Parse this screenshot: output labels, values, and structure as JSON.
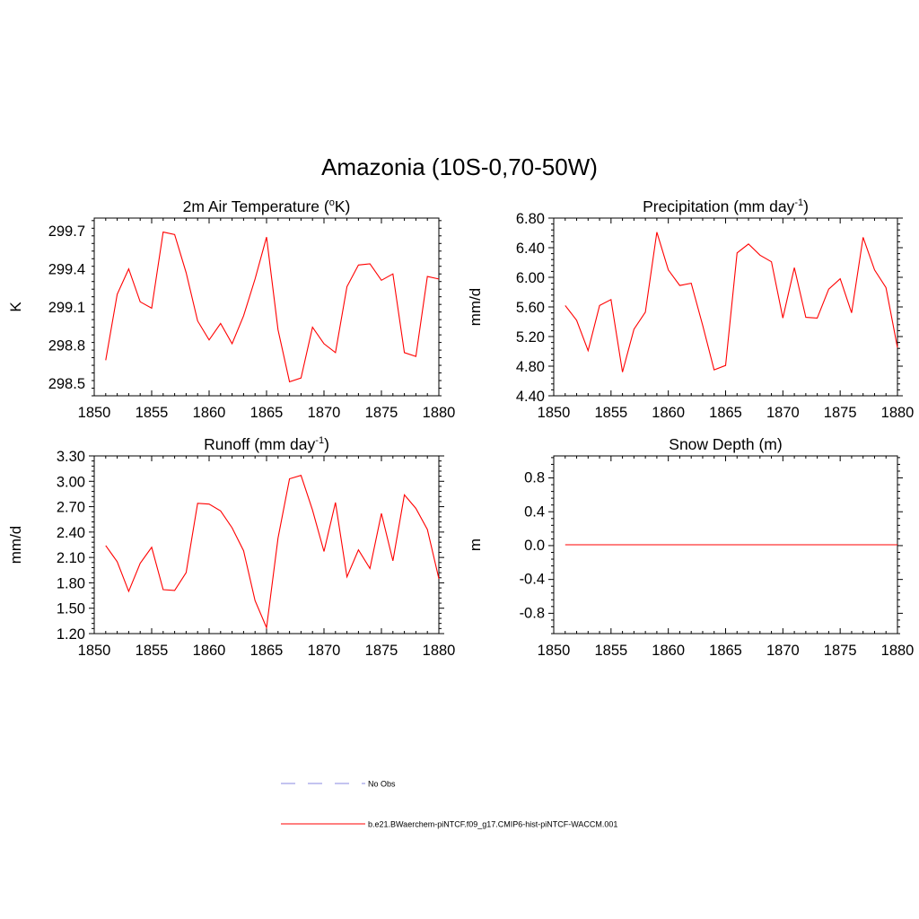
{
  "figure": {
    "title": "Amazonia (10S-0,70-50W)"
  },
  "colors": {
    "model_line": "#ff0000",
    "obs_line": "#a0a0e8",
    "axis": "#000000"
  },
  "chart_data": [
    {
      "type": "line",
      "panel": "top-left",
      "title": "2m Air Temperature (",
      "title_sup": "o",
      "title_end": "K)",
      "ylabel": "K",
      "xlim": [
        1850,
        1880
      ],
      "ylim": [
        298.4,
        299.8
      ],
      "xticks": [
        "1850",
        "1855",
        "1860",
        "1865",
        "1870",
        "1875",
        "1880"
      ],
      "yticks": [
        "298.5",
        "298.8",
        "299.1",
        "299.4",
        "299.7"
      ],
      "ytick_values": [
        298.5,
        298.8,
        299.1,
        299.4,
        299.7
      ],
      "x": [
        1851,
        1852,
        1853,
        1854,
        1855,
        1856,
        1857,
        1858,
        1859,
        1860,
        1861,
        1862,
        1863,
        1864,
        1865,
        1866,
        1867,
        1868,
        1869,
        1870,
        1871,
        1872,
        1873,
        1874,
        1875,
        1876,
        1877,
        1878,
        1879,
        1880
      ],
      "series": [
        {
          "values": [
            298.68,
            299.2,
            299.4,
            299.14,
            299.09,
            299.69,
            299.67,
            299.37,
            298.99,
            298.84,
            298.97,
            298.81,
            299.03,
            299.32,
            299.65,
            298.92,
            298.51,
            298.54,
            298.94,
            298.81,
            298.74,
            299.26,
            299.43,
            299.44,
            299.31,
            299.36,
            298.74,
            298.71,
            299.34,
            299.32
          ]
        }
      ]
    },
    {
      "type": "line",
      "panel": "top-right",
      "title": "Precipitation (mm day",
      "title_sup": "-1",
      "title_end": ")",
      "ylabel": "mm/d",
      "xlim": [
        1850,
        1880
      ],
      "ylim": [
        4.4,
        6.8
      ],
      "xticks": [
        "1850",
        "1855",
        "1860",
        "1865",
        "1870",
        "1875",
        "1880"
      ],
      "yticks": [
        "4.40",
        "4.80",
        "5.20",
        "5.60",
        "6.00",
        "6.40",
        "6.80"
      ],
      "ytick_values": [
        4.4,
        4.8,
        5.2,
        5.6,
        6.0,
        6.4,
        6.8
      ],
      "x": [
        1851,
        1852,
        1853,
        1854,
        1855,
        1856,
        1857,
        1858,
        1859,
        1860,
        1861,
        1862,
        1863,
        1864,
        1865,
        1866,
        1867,
        1868,
        1869,
        1870,
        1871,
        1872,
        1873,
        1874,
        1875,
        1876,
        1877,
        1878,
        1879,
        1880
      ],
      "series": [
        {
          "values": [
            5.62,
            5.42,
            5.01,
            5.62,
            5.7,
            4.72,
            5.3,
            5.53,
            6.61,
            6.1,
            5.89,
            5.92,
            5.35,
            4.75,
            4.81,
            6.33,
            6.45,
            6.3,
            6.21,
            5.45,
            6.13,
            5.46,
            5.45,
            5.84,
            5.98,
            5.52,
            6.54,
            6.1,
            5.86,
            5.05
          ]
        }
      ]
    },
    {
      "type": "line",
      "panel": "bottom-left",
      "title": "Runoff (mm day",
      "title_sup": "-1",
      "title_end": ")",
      "ylabel": "mm/d",
      "xlim": [
        1850,
        1880
      ],
      "ylim": [
        1.2,
        3.3
      ],
      "xticks": [
        "1850",
        "1855",
        "1860",
        "1865",
        "1870",
        "1875",
        "1880"
      ],
      "yticks": [
        "1.20",
        "1.50",
        "1.80",
        "2.10",
        "2.40",
        "2.70",
        "3.00",
        "3.30"
      ],
      "ytick_values": [
        1.2,
        1.5,
        1.8,
        2.1,
        2.4,
        2.7,
        3.0,
        3.3
      ],
      "x": [
        1851,
        1852,
        1853,
        1854,
        1855,
        1856,
        1857,
        1858,
        1859,
        1860,
        1861,
        1862,
        1863,
        1864,
        1865,
        1866,
        1867,
        1868,
        1869,
        1870,
        1871,
        1872,
        1873,
        1874,
        1875,
        1876,
        1877,
        1878,
        1879,
        1880
      ],
      "series": [
        {
          "values": [
            2.24,
            2.05,
            1.7,
            2.03,
            2.22,
            1.72,
            1.71,
            1.92,
            2.74,
            2.73,
            2.65,
            2.45,
            2.18,
            1.59,
            1.27,
            2.33,
            3.03,
            3.07,
            2.66,
            2.17,
            2.75,
            1.87,
            2.19,
            1.97,
            2.62,
            2.06,
            2.84,
            2.68,
            2.43,
            1.85
          ]
        }
      ]
    },
    {
      "type": "line",
      "panel": "bottom-right",
      "title": "Snow Depth (m)",
      "title_sup": "",
      "title_end": "",
      "ylabel": "m",
      "xlim": [
        1850,
        1880
      ],
      "ylim": [
        -1.05,
        1.05
      ],
      "xticks": [
        "1850",
        "1855",
        "1860",
        "1865",
        "1870",
        "1875",
        "1880"
      ],
      "yticks": [
        "-0.8",
        "-0.4",
        "0.0",
        "0.4",
        "0.8"
      ],
      "ytick_values": [
        -0.8,
        -0.4,
        0.0,
        0.4,
        0.8
      ],
      "x": [
        1851,
        1852,
        1853,
        1854,
        1855,
        1856,
        1857,
        1858,
        1859,
        1860,
        1861,
        1862,
        1863,
        1864,
        1865,
        1866,
        1867,
        1868,
        1869,
        1870,
        1871,
        1872,
        1873,
        1874,
        1875,
        1876,
        1877,
        1878,
        1879,
        1880
      ],
      "series": [
        {
          "values": [
            0,
            0,
            0,
            0,
            0,
            0,
            0,
            0,
            0,
            0,
            0,
            0,
            0,
            0,
            0,
            0,
            0,
            0,
            0,
            0,
            0,
            0,
            0,
            0,
            0,
            0,
            0,
            0,
            0,
            0
          ]
        }
      ]
    }
  ],
  "legend": {
    "items": [
      {
        "label": "No Obs",
        "style": "dashed",
        "color": "#a0a0e8"
      },
      {
        "label": "b.e21.BWaerchem-piNTCF.f09_g17.CMIP6-hist-piNTCF-WACCM.001",
        "style": "solid",
        "color": "#ff0000"
      }
    ]
  }
}
